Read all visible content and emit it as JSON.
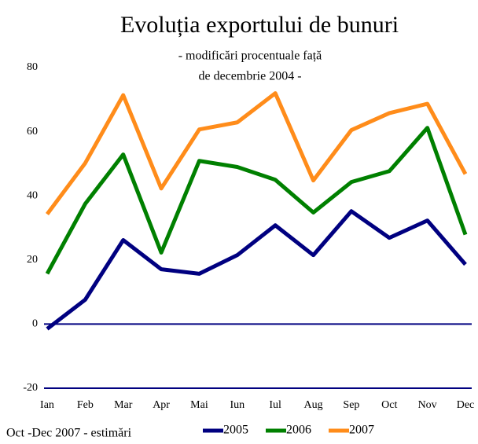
{
  "chart_data": {
    "type": "line",
    "title": "Evoluția exportului de bunuri",
    "subtitle": [
      "- modificări procentuale față",
      "de decembrie 2004 -"
    ],
    "note": "Oct -Dec 2007 - estimări",
    "categories": [
      "Ian",
      "Feb",
      "Mar",
      "Apr",
      "Mai",
      "Iun",
      "Iul",
      "Aug",
      "Sep",
      "Oct",
      "Nov",
      "Dec"
    ],
    "series": [
      {
        "name": "2005",
        "color": "#000080",
        "values": [
          -1.5,
          7.6,
          26.2,
          17.1,
          15.7,
          21.5,
          30.8,
          21.5,
          35.2,
          26.9,
          32.3,
          18.6
        ]
      },
      {
        "name": "2006",
        "color": "#008000",
        "values": [
          15.7,
          37.5,
          52.9,
          22.3,
          50.9,
          49.0,
          45.0,
          34.8,
          44.3,
          47.7,
          61.2,
          27.9
        ]
      },
      {
        "name": "2007",
        "color": "#ff8c1a",
        "values": [
          34.3,
          50.2,
          71.4,
          42.3,
          60.7,
          62.9,
          72.0,
          44.8,
          60.5,
          65.8,
          68.7,
          46.8
        ]
      }
    ],
    "ylim": [
      -20,
      80
    ],
    "yticks": [
      -20,
      0,
      20,
      40,
      60,
      80
    ],
    "legend": "bottom"
  }
}
